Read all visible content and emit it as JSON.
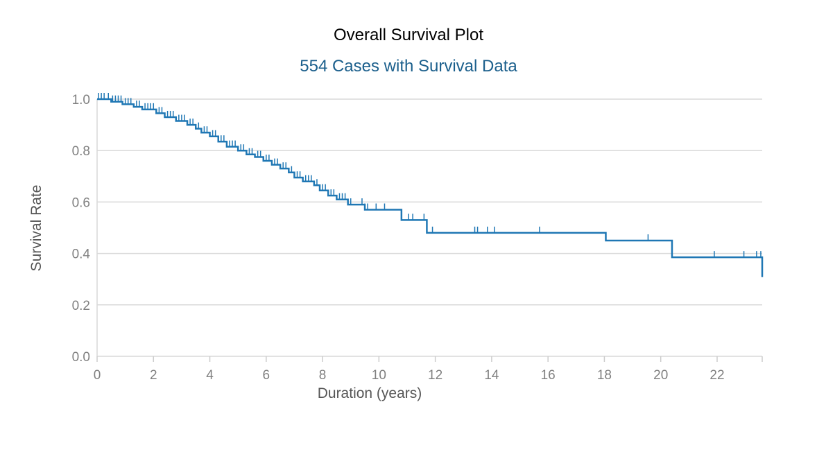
{
  "title": "Overall Survival Plot",
  "subtitle": "554 Cases with Survival Data",
  "colors": {
    "curve": "#1f77b4",
    "subtitle": "#1b5f8c"
  },
  "chart_data": {
    "type": "line",
    "title": "Overall Survival Plot",
    "subtitle": "554 Cases with Survival Data",
    "xlabel": "Duration (years)",
    "ylabel": "Survival Rate",
    "xlim": [
      0,
      23.6
    ],
    "ylim": [
      0,
      1.0
    ],
    "xticks": [
      0,
      2,
      4,
      6,
      8,
      10,
      12,
      14,
      16,
      18,
      20,
      22
    ],
    "xtick_labels": [
      "0",
      "2",
      "4",
      "6",
      "8",
      "10",
      "12",
      "14",
      "16",
      "18",
      "20",
      "22"
    ],
    "yticks": [
      0,
      0.2,
      0.4,
      0.6,
      0.8,
      1.0
    ],
    "ytick_labels": [
      "0.0",
      "0.2",
      "0.4",
      "0.6",
      "0.8",
      "1.0"
    ],
    "grid": true,
    "step": true,
    "series": [
      {
        "x": [
          0,
          0.5,
          0.9,
          1.3,
          1.6,
          2.1,
          2.4,
          2.8,
          3.2,
          3.5,
          3.7,
          4.0,
          4.3,
          4.6,
          5.0,
          5.3,
          5.6,
          5.9,
          6.2,
          6.5,
          6.8,
          7.0,
          7.3,
          7.7,
          7.9,
          8.2,
          8.5,
          8.9,
          9.5,
          10.8,
          11.7,
          18.05,
          20.4,
          23.6
        ],
        "y": [
          1.0,
          0.99,
          0.98,
          0.97,
          0.96,
          0.945,
          0.93,
          0.915,
          0.9,
          0.885,
          0.87,
          0.855,
          0.835,
          0.815,
          0.8,
          0.785,
          0.775,
          0.76,
          0.745,
          0.73,
          0.715,
          0.695,
          0.68,
          0.665,
          0.645,
          0.625,
          0.61,
          0.59,
          0.57,
          0.53,
          0.48,
          0.45,
          0.385,
          0.308
        ]
      }
    ],
    "censored_x": [
      0.05,
      0.15,
      0.25,
      0.4,
      0.55,
      0.65,
      0.75,
      0.85,
      1.0,
      1.1,
      1.2,
      1.4,
      1.5,
      1.7,
      1.8,
      1.9,
      2.0,
      2.2,
      2.3,
      2.5,
      2.6,
      2.7,
      2.9,
      3.0,
      3.1,
      3.3,
      3.4,
      3.6,
      3.8,
      3.9,
      4.1,
      4.2,
      4.4,
      4.5,
      4.7,
      4.8,
      4.9,
      5.1,
      5.2,
      5.4,
      5.5,
      5.7,
      5.8,
      6.0,
      6.1,
      6.3,
      6.4,
      6.6,
      6.7,
      6.9,
      7.1,
      7.2,
      7.4,
      7.5,
      7.6,
      7.8,
      8.0,
      8.1,
      8.3,
      8.4,
      8.6,
      8.7,
      8.8,
      9.0,
      9.4,
      9.5,
      9.6,
      9.9,
      10.2,
      10.8,
      11.05,
      11.2,
      11.6,
      11.9,
      13.4,
      13.5,
      13.85,
      14.1,
      15.7,
      18.05,
      19.55,
      20.4,
      21.9,
      22.95,
      23.4,
      23.55
    ]
  }
}
